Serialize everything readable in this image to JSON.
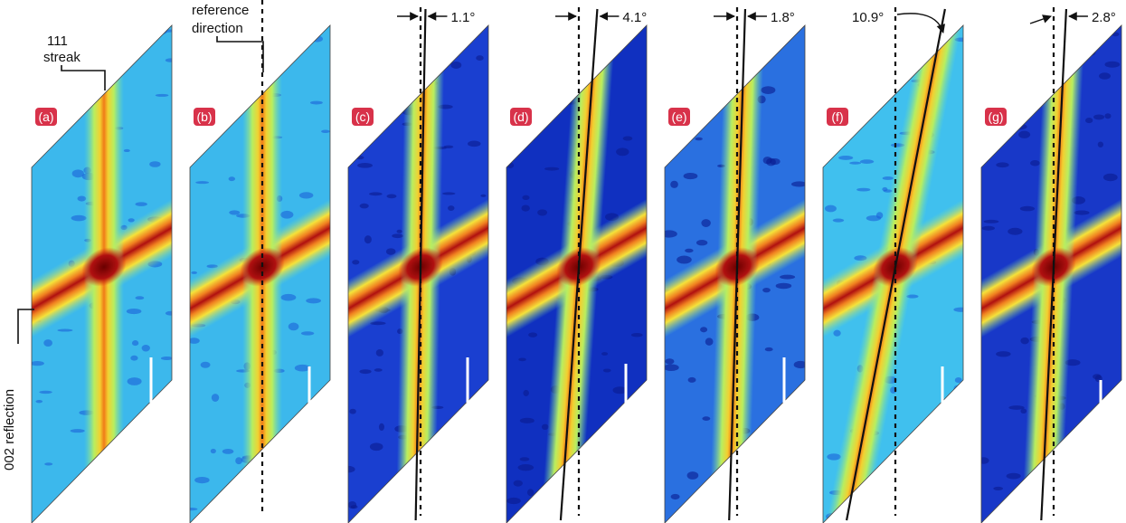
{
  "figure": {
    "streak_label": [
      "111",
      "streak"
    ],
    "reference_label": [
      "reference",
      "direction"
    ],
    "reflection_label": "002  reflection",
    "panels": [
      {
        "label": "(a)"
      },
      {
        "label": "(b)"
      },
      {
        "label": "(c)",
        "angle": "1.1°"
      },
      {
        "label": "(d)",
        "angle": "4.1°"
      },
      {
        "label": "(e)",
        "angle": "1.8°"
      },
      {
        "label": "(f)",
        "angle": "10.9°"
      },
      {
        "label": "(g)",
        "angle": "2.8°"
      }
    ]
  }
}
